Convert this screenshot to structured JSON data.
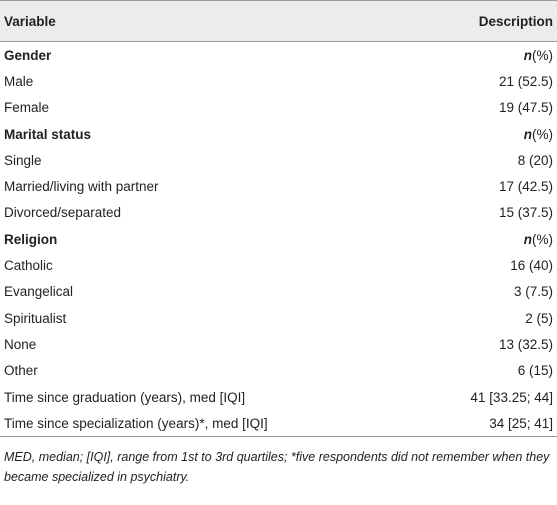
{
  "table": {
    "header": [
      "Variable",
      "Description"
    ],
    "rows": [
      {
        "variable": "Gender",
        "heading": true,
        "description_italic": "n",
        "description": "(%)"
      },
      {
        "variable": "Male",
        "description": "21 (52.5)"
      },
      {
        "variable": "Female",
        "description": "19 (47.5)"
      },
      {
        "variable": "Marital status",
        "heading": true,
        "description_italic": "n",
        "description": "(%)"
      },
      {
        "variable": "Single",
        "description": "8 (20)"
      },
      {
        "variable": "Married/living with partner",
        "description": "17 (42.5)"
      },
      {
        "variable": "Divorced/separated",
        "description": "15 (37.5)"
      },
      {
        "variable": "Religion",
        "heading": true,
        "description_italic": "n",
        "description": "(%)"
      },
      {
        "variable": "Catholic",
        "description": "16 (40)"
      },
      {
        "variable": "Evangelical",
        "description": "3 (7.5)"
      },
      {
        "variable": "Spiritualist",
        "description": "2 (5)"
      },
      {
        "variable": "None",
        "description": "13 (32.5)"
      },
      {
        "variable": "Other",
        "description": "6 (15)"
      },
      {
        "variable": "Time since graduation (years), med [IQI]",
        "description": "41 [33.25; 44]"
      },
      {
        "variable": "Time since specialization (years)*, med [IQI]",
        "description": "34 [25; 41]"
      }
    ],
    "footnote": "MED, median; [IQI], range from 1st to 3rd quartiles; *five respondents did not remember when they became specialized in psychiatry."
  }
}
